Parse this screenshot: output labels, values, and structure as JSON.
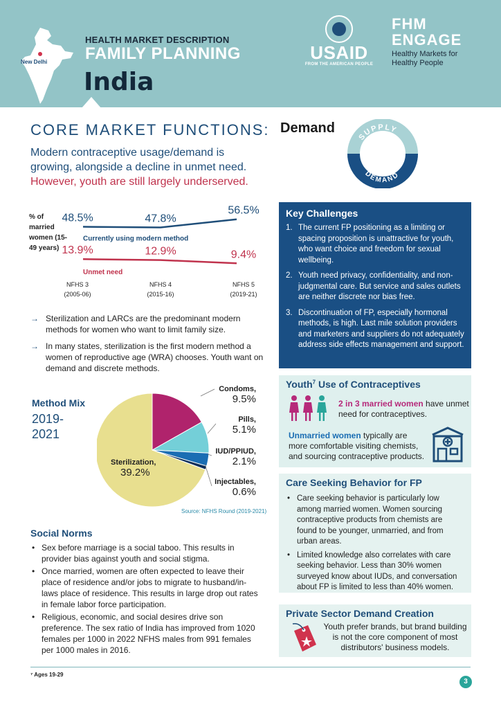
{
  "header": {
    "kicker": "HEALTH MARKET DESCRIPTION",
    "title": "FAMILY PLANNING",
    "country": "India",
    "map_city": "New Delhi",
    "usaid_name": "USAID",
    "usaid_sub": "FROM THE AMERICAN PEOPLE",
    "fhm_line1": "FHM",
    "fhm_line2": "ENGAGE",
    "fhm_tag1": "Healthy Markets for",
    "fhm_tag2": "Healthy People"
  },
  "core": {
    "title": "CORE MARKET FUNCTIONS:",
    "demand": "Demand",
    "circle_supply": "SUPPLY",
    "circle_demand": "DEMAND"
  },
  "intro": {
    "line1": "Modern contraceptive usage/demand is growing, alongside a decline in unmet need.",
    "line2": "However, youth are still largely underserved."
  },
  "chart_data": {
    "type": "line",
    "ylabel": "% of married women (15-49 years)",
    "categories": [
      "NFHS 3 (2005-06)",
      "NFHS 4 (2015-16)",
      "NFHS 5 (2019-21)"
    ],
    "category_names": [
      "NFHS 3",
      "NFHS 4",
      "NFHS 5"
    ],
    "category_years": [
      "(2005-06)",
      "(2015-16)",
      "(2019-21)"
    ],
    "series": [
      {
        "name": "Currently using modern method",
        "values": [
          48.5,
          47.8,
          56.5
        ],
        "labels": [
          "48.5%",
          "47.8%",
          "56.5%"
        ],
        "color": "#1f4e79"
      },
      {
        "name": "Unmet need",
        "values": [
          13.9,
          12.9,
          9.4
        ],
        "labels": [
          "13.9%",
          "12.9%",
          "9.4%"
        ],
        "color": "#c0334d"
      }
    ]
  },
  "bullets1": [
    "Sterilization and LARCs are the predominant modern methods for women who want to limit family size.",
    "In many states, sterilization is the first modern method a women of reproductive age (WRA) chooses. Youth want on demand and discrete methods."
  ],
  "method_mix": {
    "title": "Method Mix",
    "years": "2019-2021",
    "source": "Source: NFHS Round (2019-2021)",
    "chart_data": {
      "type": "pie",
      "slices": [
        {
          "name": "Condoms,",
          "value": 9.5,
          "label": "9.5%",
          "color": "#b0236c"
        },
        {
          "name": "Pills,",
          "value": 5.1,
          "label": "5.1%",
          "color": "#74cfd8"
        },
        {
          "name": "IUD/PPIUD,",
          "value": 2.1,
          "label": "2.1%",
          "color": "#1a6db3"
        },
        {
          "name": "Injectables,",
          "value": 0.6,
          "label": "0.6%",
          "color": "#0d2f5a"
        },
        {
          "name": "Sterilization,",
          "value": 39.2,
          "label": "39.2%",
          "color": "#e8df8f"
        }
      ]
    }
  },
  "social_norms": {
    "title": "Social Norms",
    "items": [
      "Sex before marriage is a social taboo. This results in provider bias against youth and social stigma.",
      "Once married, women are often expected to leave their place of residence and/or jobs to migrate to husband/in-laws place of residence. This results in large drop out rates in female labor force participation.",
      "Religious, economic, and social desires drive son preference. The sex ratio of India has improved from 1020 females per 1000 in 2022 NFHS males from 991 females per 1000 males in 2016."
    ]
  },
  "footnote": "⁷ Ages 19-29",
  "page_number": "3",
  "key_challenges": {
    "title": "Key Challenges",
    "items": [
      {
        "num": "1.",
        "text": "The current FP positioning as a limiting or spacing proposition is unattractive for youth, who want choice and freedom for sexual wellbeing."
      },
      {
        "num": "2.",
        "text": "Youth need privacy, confidentiality, and non-judgmental care. But service and sales outlets are neither discrete nor bias free."
      },
      {
        "num": "3.",
        "text": "Discontinuation of FP, especially hormonal methods, is high. Last mile solution providers and marketers and suppliers do not adequately address side effects management and support."
      }
    ]
  },
  "youth": {
    "title": "Youth",
    "title_sup": "7",
    "title_rest": " Use of Contraceptives",
    "stat_highlight": "2 in 3 married women",
    "stat_rest": " have unmet need for contraceptives.",
    "text2_highlight": "Unmarried women",
    "text2_rest": " typically are more comfortable visiting chemists, and sourcing contraceptive products."
  },
  "care_seeking": {
    "title": "Care Seeking Behavior for FP",
    "items": [
      "Care seeking behavior is particularly low among married women. Women sourcing contraceptive products from chemists are found to be younger, unmarried, and from urban areas.",
      "Limited knowledge also correlates with care seeking behavior. Less than 30% women surveyed know about IUDs, and conversation about FP is limited to less than 40% women."
    ]
  },
  "private_sector": {
    "title": "Private Sector Demand Creation",
    "text": "Youth prefer brands, but brand building is not the core component of most distributors' business models."
  }
}
